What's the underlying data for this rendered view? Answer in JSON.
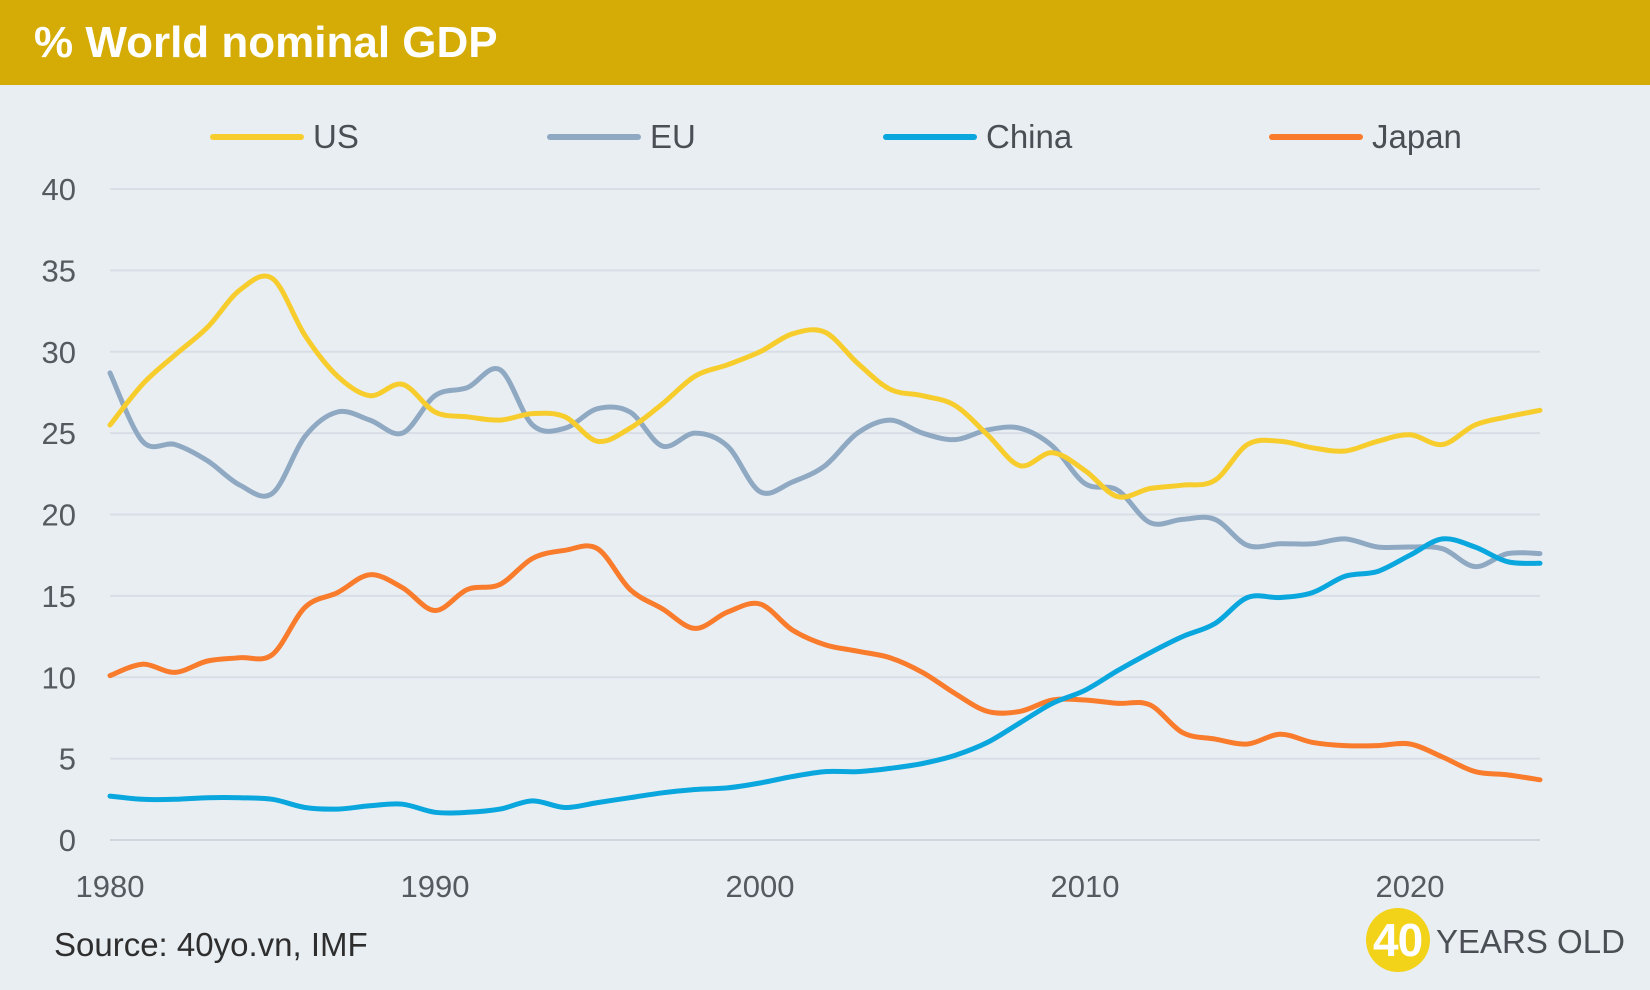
{
  "title": "% World nominal GDP",
  "source": "Source: 40yo.vn, IMF",
  "logo": {
    "number": "40",
    "text": "YEARS OLD"
  },
  "colors": {
    "title_bar": "#d5ac05",
    "background": "#e9eef3",
    "US": "#f7cd2e",
    "EU": "#90a9c3",
    "China": "#0aa6de",
    "Japan": "#f97b2c"
  },
  "chart_data": {
    "type": "line",
    "title": "% World nominal GDP",
    "xlabel": "",
    "ylabel": "",
    "xlim": [
      1980,
      2024
    ],
    "ylim": [
      0,
      40
    ],
    "x_ticks": [
      1980,
      1990,
      2000,
      2010,
      2020
    ],
    "y_ticks": [
      0,
      5,
      10,
      15,
      20,
      25,
      30,
      35,
      40
    ],
    "grid": true,
    "legend_position": "top",
    "x": [
      1980,
      1981,
      1982,
      1983,
      1984,
      1985,
      1986,
      1987,
      1988,
      1989,
      1990,
      1991,
      1992,
      1993,
      1994,
      1995,
      1996,
      1997,
      1998,
      1999,
      2000,
      2001,
      2002,
      2003,
      2004,
      2005,
      2006,
      2007,
      2008,
      2009,
      2010,
      2011,
      2012,
      2013,
      2014,
      2015,
      2016,
      2017,
      2018,
      2019,
      2020,
      2021,
      2022,
      2023,
      2024
    ],
    "series": [
      {
        "name": "US",
        "values": [
          25.5,
          28.0,
          29.8,
          31.5,
          33.8,
          34.5,
          31.0,
          28.5,
          27.3,
          28.0,
          26.3,
          26.0,
          25.8,
          26.2,
          26.0,
          24.5,
          25.3,
          26.8,
          28.5,
          29.2,
          30.0,
          31.1,
          31.2,
          29.3,
          27.7,
          27.3,
          26.7,
          24.9,
          23.0,
          23.8,
          22.7,
          21.1,
          21.6,
          21.8,
          22.1,
          24.3,
          24.5,
          24.1,
          23.9,
          24.5,
          24.9,
          24.3,
          25.5,
          26.0,
          26.4
        ]
      },
      {
        "name": "EU",
        "values": [
          28.7,
          24.5,
          24.3,
          23.3,
          21.8,
          21.3,
          24.8,
          26.3,
          25.8,
          25.0,
          27.3,
          27.8,
          28.9,
          25.5,
          25.3,
          26.5,
          26.3,
          24.2,
          25.0,
          24.2,
          21.4,
          22.0,
          23.0,
          25.0,
          25.8,
          25.0,
          24.6,
          25.2,
          25.3,
          24.2,
          21.9,
          21.5,
          19.5,
          19.7,
          19.7,
          18.1,
          18.2,
          18.2,
          18.5,
          18.0,
          18.0,
          17.9,
          16.8,
          17.6,
          17.6
        ]
      },
      {
        "name": "China",
        "values": [
          2.7,
          2.5,
          2.5,
          2.6,
          2.6,
          2.5,
          2.0,
          1.9,
          2.1,
          2.2,
          1.7,
          1.7,
          1.9,
          2.4,
          2.0,
          2.3,
          2.6,
          2.9,
          3.1,
          3.2,
          3.5,
          3.9,
          4.2,
          4.2,
          4.4,
          4.7,
          5.2,
          6.0,
          7.2,
          8.4,
          9.2,
          10.4,
          11.5,
          12.5,
          13.3,
          14.9,
          14.9,
          15.2,
          16.2,
          16.5,
          17.5,
          18.5,
          18.0,
          17.1,
          17.0
        ]
      },
      {
        "name": "Japan",
        "values": [
          10.1,
          10.8,
          10.3,
          11.0,
          11.2,
          11.4,
          14.3,
          15.2,
          16.3,
          15.5,
          14.1,
          15.4,
          15.7,
          17.3,
          17.8,
          17.9,
          15.4,
          14.2,
          13.0,
          14.0,
          14.5,
          12.9,
          12.0,
          11.6,
          11.2,
          10.3,
          9.0,
          7.9,
          7.9,
          8.6,
          8.6,
          8.4,
          8.3,
          6.6,
          6.2,
          5.9,
          6.5,
          6.0,
          5.8,
          5.8,
          5.9,
          5.1,
          4.2,
          4.0,
          3.7
        ]
      }
    ]
  }
}
